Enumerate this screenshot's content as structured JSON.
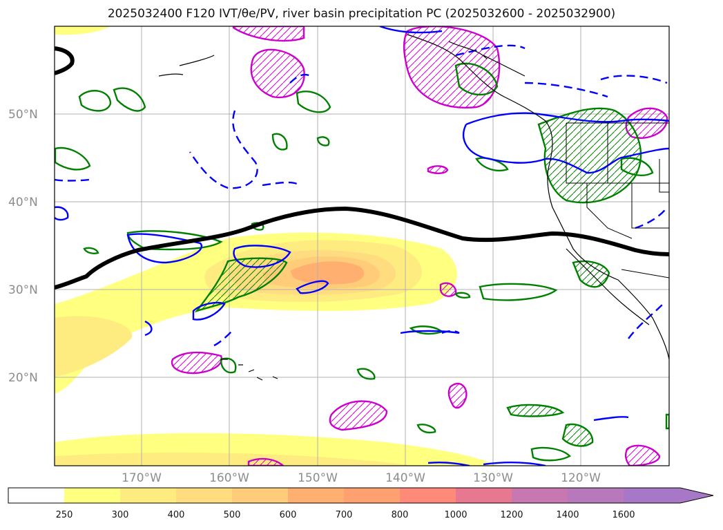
{
  "title": "2025032400 F120 IVT/θe/PV, river basin precipitation PC (2025032600 - 2025032900)",
  "lat_labels": [
    "50°N",
    "40°N",
    "30°N",
    "20°N"
  ],
  "lon_labels": [
    "170°W",
    "160°W",
    "150°W",
    "140°W",
    "130°W",
    "120°W"
  ],
  "colorbar": {
    "levels": [
      "250",
      "300",
      "400",
      "500",
      "600",
      "700",
      "800",
      "1000",
      "1200",
      "1400",
      "1600"
    ],
    "colors": [
      "#ffffff",
      "#ffff80",
      "#ffec80",
      "#ffdc80",
      "#ffcc7a",
      "#ffb070",
      "#ffa070",
      "#ff8a7a",
      "#e87890",
      "#c878b0",
      "#a878c8"
    ]
  },
  "contour_colors": {
    "black": "#000000",
    "blue": "#0000ff",
    "green": "#008000",
    "magenta": "#cc00cc"
  }
}
